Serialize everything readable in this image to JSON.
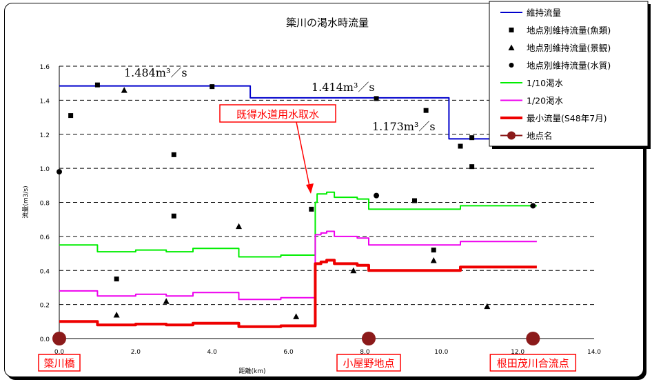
{
  "chart_data": {
    "type": "line",
    "title": "簗川の渇水時流量",
    "xlabel": "距離(km)",
    "ylabel": "流量(m3/s)",
    "xlim": [
      0,
      14
    ],
    "ylim": [
      0,
      1.6
    ],
    "xticks": [
      "0.0",
      "2.0",
      "4.0",
      "6.0",
      "8.0",
      "10.0",
      "12.0",
      "14.0"
    ],
    "yticks": [
      "0.0",
      "0.2",
      "0.4",
      "0.6",
      "0.8",
      "1.0",
      "1.2",
      "1.4",
      "1.6"
    ],
    "grid": "horizontal-dashed",
    "legend_position": "top-right",
    "colors": {
      "maintenance": "#0000cc",
      "drought_10": "#00ee00",
      "drought_20": "#ee00ee",
      "minimum": "#ee0000",
      "location": "#8b1a1a",
      "annotation": "#ff0000"
    },
    "series": [
      {
        "name": "維持流量",
        "key": "maintenance",
        "x": [
          0,
          5.0,
          5.0,
          10.2,
          10.2,
          12.5
        ],
        "y": [
          1.484,
          1.484,
          1.414,
          1.414,
          1.173,
          1.173
        ]
      },
      {
        "name": "1/10渇水",
        "key": "drought_10",
        "x": [
          0,
          1.0,
          1.0,
          2.0,
          2.0,
          2.8,
          2.8,
          3.5,
          3.5,
          4.7,
          4.7,
          5.8,
          5.8,
          6.7,
          6.7,
          6.75,
          6.75,
          7.0,
          7.0,
          7.2,
          7.2,
          7.8,
          7.8,
          8.1,
          8.1,
          10.5,
          10.5,
          12.5
        ],
        "y": [
          0.55,
          0.55,
          0.51,
          0.51,
          0.52,
          0.52,
          0.51,
          0.51,
          0.53,
          0.53,
          0.48,
          0.48,
          0.49,
          0.49,
          0.8,
          0.8,
          0.85,
          0.85,
          0.86,
          0.86,
          0.83,
          0.83,
          0.82,
          0.82,
          0.76,
          0.76,
          0.78,
          0.78
        ]
      },
      {
        "name": "1/20渇水",
        "key": "drought_20",
        "x": [
          0,
          1.0,
          1.0,
          2.0,
          2.0,
          2.8,
          2.8,
          3.5,
          3.5,
          4.7,
          4.7,
          5.8,
          5.8,
          6.7,
          6.7,
          6.85,
          6.85,
          7.0,
          7.0,
          7.2,
          7.2,
          7.8,
          7.8,
          8.1,
          8.1,
          10.5,
          10.5,
          12.5
        ],
        "y": [
          0.28,
          0.28,
          0.25,
          0.25,
          0.26,
          0.26,
          0.25,
          0.25,
          0.27,
          0.27,
          0.23,
          0.23,
          0.24,
          0.24,
          0.61,
          0.61,
          0.62,
          0.62,
          0.63,
          0.63,
          0.6,
          0.6,
          0.59,
          0.59,
          0.55,
          0.55,
          0.57,
          0.57
        ]
      },
      {
        "name": "最小流量(S48年7月)",
        "key": "minimum",
        "x": [
          0,
          1.0,
          1.0,
          2.0,
          2.0,
          2.8,
          2.8,
          3.5,
          3.5,
          4.7,
          4.7,
          5.8,
          5.8,
          6.7,
          6.7,
          6.85,
          6.85,
          7.0,
          7.0,
          7.2,
          7.2,
          7.8,
          7.8,
          8.1,
          8.1,
          10.5,
          10.5,
          12.5
        ],
        "y": [
          0.1,
          0.1,
          0.08,
          0.08,
          0.085,
          0.085,
          0.08,
          0.08,
          0.09,
          0.09,
          0.07,
          0.07,
          0.075,
          0.075,
          0.44,
          0.44,
          0.45,
          0.45,
          0.46,
          0.46,
          0.44,
          0.44,
          0.43,
          0.43,
          0.4,
          0.4,
          0.42,
          0.42
        ]
      }
    ],
    "points": {
      "fish": {
        "name": "地点別維持流量(魚類)",
        "x": [
          0.3,
          1.0,
          1.5,
          3.0,
          3.0,
          4.0,
          6.6,
          8.3,
          9.3,
          9.6,
          9.8,
          10.5,
          10.8,
          10.8
        ],
        "y": [
          1.31,
          1.49,
          0.35,
          1.08,
          0.72,
          1.48,
          0.76,
          1.41,
          0.81,
          1.34,
          0.52,
          1.13,
          1.18,
          1.01
        ]
      },
      "scenery": {
        "name": "地点別維持流量(景観)",
        "x": [
          1.5,
          1.7,
          2.8,
          4.7,
          6.2,
          7.7,
          9.8,
          11.2
        ],
        "y": [
          0.14,
          1.46,
          0.22,
          0.66,
          0.13,
          0.4,
          0.46,
          0.19
        ]
      },
      "quality": {
        "name": "地点別維持流量(水質)",
        "x": [
          0.0,
          8.3,
          12.4
        ],
        "y": [
          0.98,
          0.84,
          0.78
        ]
      }
    },
    "locations": {
      "name": "地点名",
      "x": [
        0.0,
        8.1,
        12.4
      ],
      "y": [
        0.0,
        0.0,
        0.0
      ],
      "labels": [
        "簗川橋",
        "小屋野地点",
        "根田茂川合流点"
      ]
    },
    "annotations": {
      "flow_1": "1.484m³／s",
      "flow_2": "1.414m³／s",
      "flow_3": "1.173m³／s",
      "intake": "既得水道用水取水"
    }
  }
}
